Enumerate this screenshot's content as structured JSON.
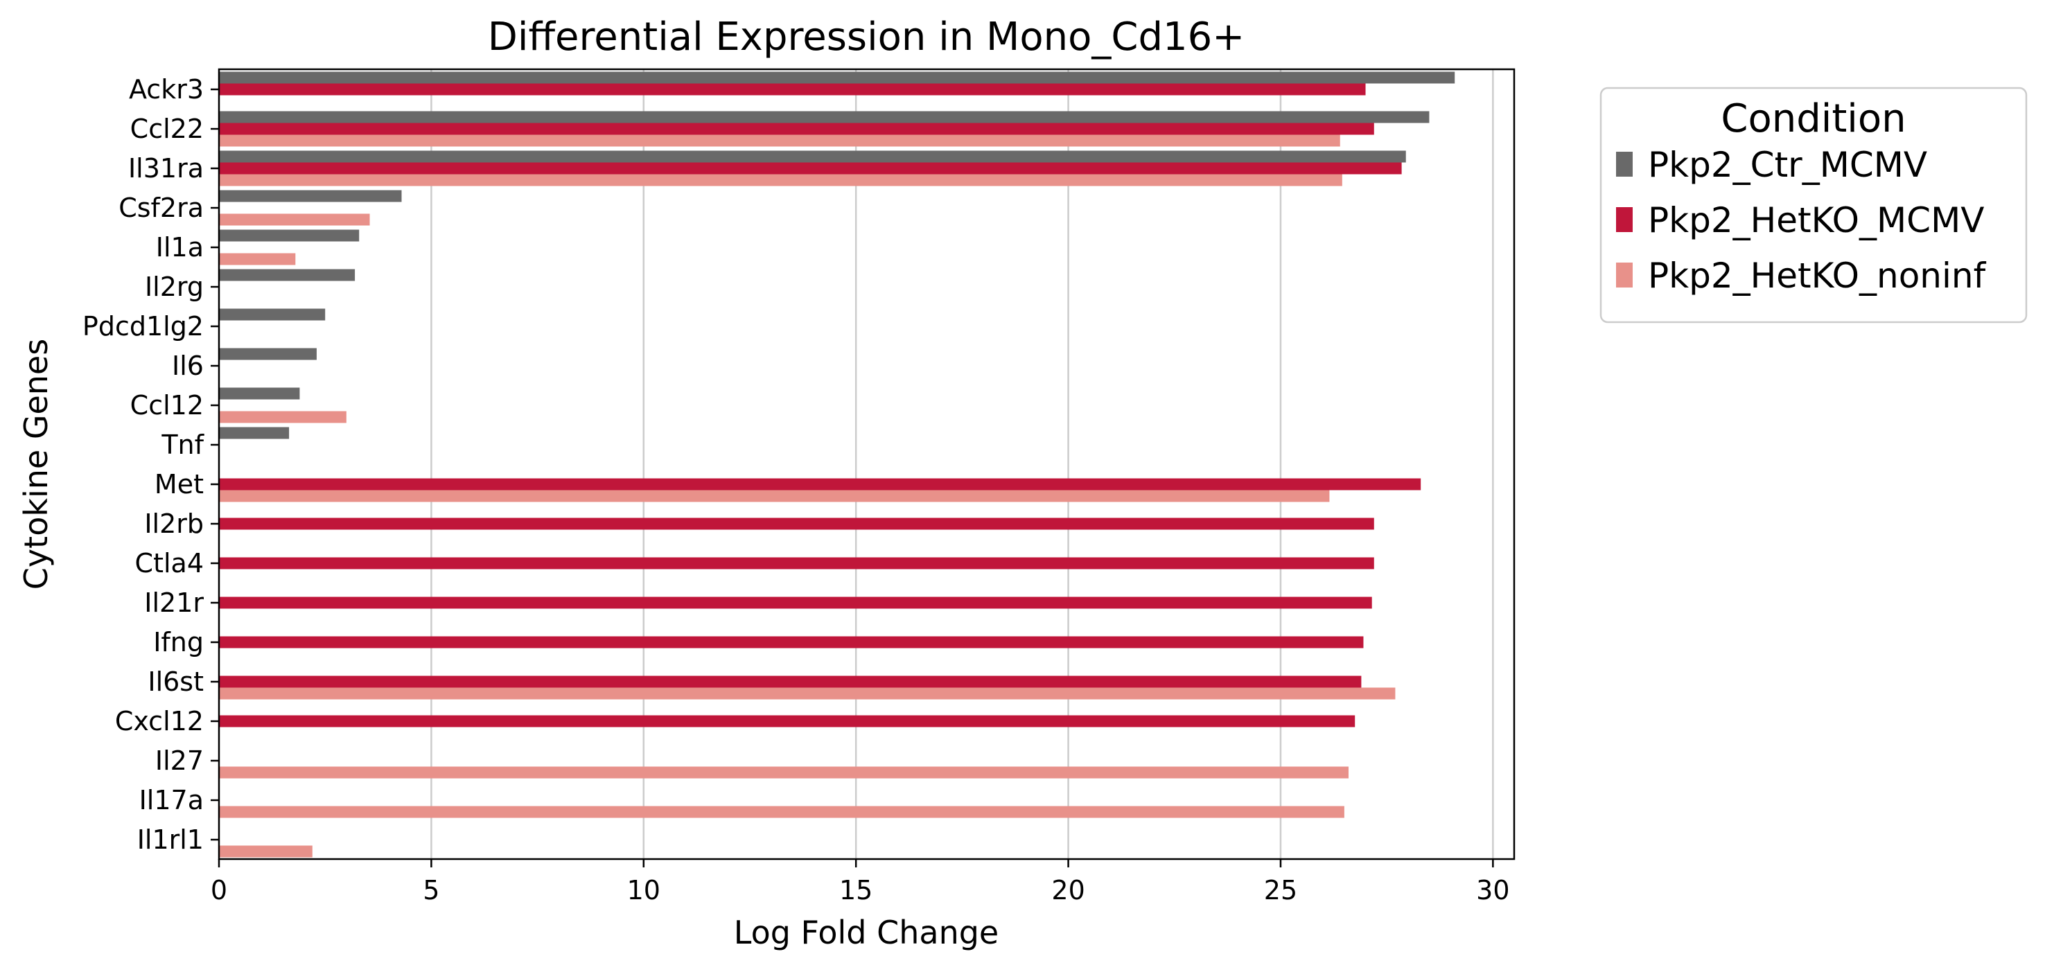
{
  "chart_data": {
    "type": "bar",
    "orientation": "horizontal",
    "title": "Differential Expression in Mono_Cd16+",
    "xlabel": "Log Fold Change",
    "ylabel": "Cytokine Genes",
    "xlim": [
      0,
      30.5
    ],
    "xticks": [
      0,
      5,
      10,
      15,
      20,
      25,
      30
    ],
    "grid": "vertical",
    "legend": {
      "title": "Condition",
      "placement": "outside-top-right"
    },
    "categories": [
      "Ackr3",
      "Ccl22",
      "Il31ra",
      "Csf2ra",
      "Il1a",
      "Il2rg",
      "Pdcd1lg2",
      "Il6",
      "Ccl12",
      "Tnf",
      "Met",
      "Il2rb",
      "Ctla4",
      "Il21r",
      "Ifng",
      "Il6st",
      "Cxcl12",
      "Il27",
      "Il17a",
      "Il1rl1"
    ],
    "series": [
      {
        "name": "Pkp2_Ctr_MCMV",
        "color": "#696969",
        "values": [
          29.1,
          28.5,
          27.95,
          4.3,
          3.3,
          3.2,
          2.5,
          2.3,
          1.9,
          1.65,
          null,
          null,
          null,
          null,
          null,
          null,
          null,
          null,
          null,
          null
        ]
      },
      {
        "name": "Pkp2_HetKO_MCMV",
        "color": "#c0163a",
        "values": [
          27.0,
          27.2,
          27.85,
          null,
          null,
          null,
          null,
          null,
          null,
          null,
          28.3,
          27.2,
          27.2,
          27.15,
          26.95,
          26.9,
          26.75,
          null,
          null,
          null
        ]
      },
      {
        "name": "Pkp2_HetKO_noninf",
        "color": "#e8918a",
        "values": [
          null,
          26.4,
          26.45,
          3.55,
          1.8,
          null,
          null,
          null,
          3.0,
          null,
          26.15,
          null,
          null,
          null,
          null,
          27.7,
          null,
          26.6,
          26.5,
          2.2
        ]
      }
    ]
  }
}
